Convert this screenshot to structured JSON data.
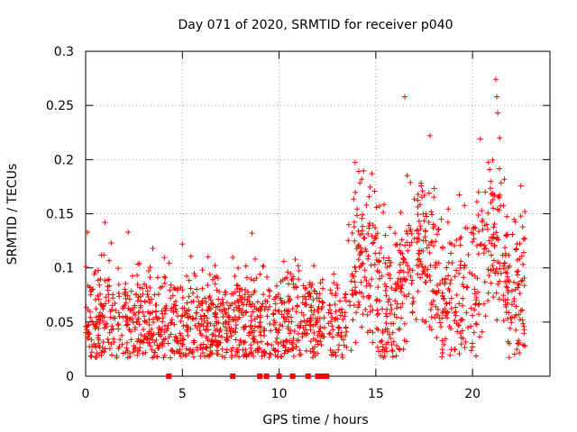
{
  "chart_data": {
    "type": "scatter",
    "title": "Day 071 of 2020, SRMTID for receiver p040",
    "xlabel": "GPS time / hours",
    "ylabel": "SRMTID / TECUs",
    "xlim": [
      0,
      24
    ],
    "ylim": [
      0,
      0.3
    ],
    "x_ticks": [
      0,
      5,
      10,
      15,
      20
    ],
    "x_tick_labels": [
      "0",
      "5",
      "10",
      "15",
      "20"
    ],
    "y_ticks": [
      0,
      0.05,
      0.1,
      0.15,
      0.2,
      0.25,
      0.3
    ],
    "y_tick_labels": [
      "0",
      "0.05",
      "0.1",
      "0.15",
      "0.2",
      "0.25",
      "0.3"
    ],
    "grid": true,
    "marker": "plus",
    "color": "#ff0000",
    "x_range_hours": [
      0,
      22.7
    ],
    "gap_hours": [
      12.35,
      12.55
    ],
    "baseline_level": 0.05,
    "spread": 0.025,
    "point_count": 1800,
    "notable_points": [
      {
        "x": 0.1,
        "y": 0.133
      },
      {
        "x": 1.0,
        "y": 0.142
      },
      {
        "x": 2.2,
        "y": 0.133
      },
      {
        "x": 5.0,
        "y": 0.122
      },
      {
        "x": 8.6,
        "y": 0.132
      },
      {
        "x": 11.8,
        "y": 0.102
      },
      {
        "x": 14.8,
        "y": 0.187
      },
      {
        "x": 16.5,
        "y": 0.258
      },
      {
        "x": 17.8,
        "y": 0.222
      },
      {
        "x": 20.4,
        "y": 0.219
      },
      {
        "x": 21.2,
        "y": 0.274
      },
      {
        "x": 21.25,
        "y": 0.258
      },
      {
        "x": 21.3,
        "y": 0.243
      },
      {
        "x": 21.4,
        "y": 0.22
      },
      {
        "x": 22.7,
        "y": 0.152
      },
      {
        "x": 22.6,
        "y": 0.029
      }
    ],
    "zero_markers_x": [
      4.3,
      7.6,
      9.0,
      9.35,
      10.0,
      10.7,
      11.5,
      12.0,
      12.25,
      12.45
    ]
  }
}
